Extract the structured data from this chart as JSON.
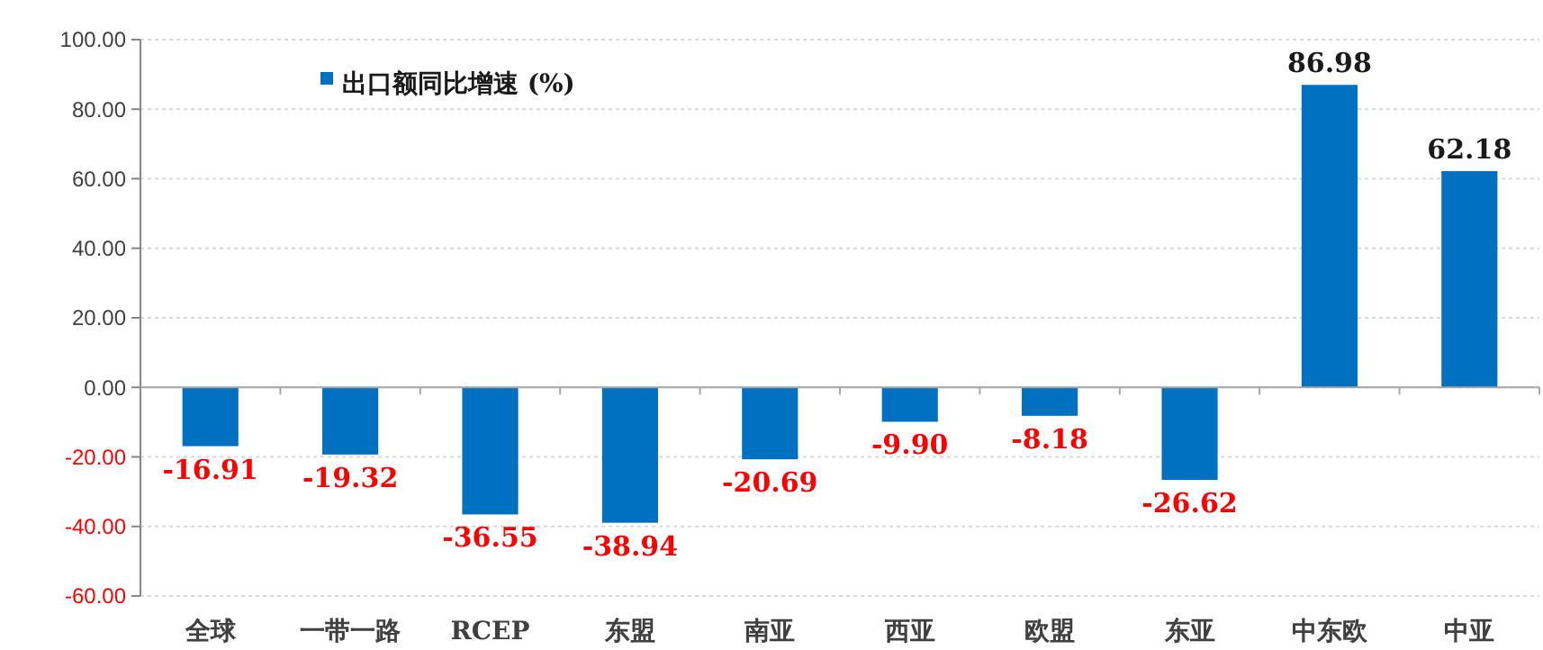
{
  "chart_data": {
    "type": "bar",
    "categories": [
      "全球",
      "一带一路",
      "RCEP",
      "东盟",
      "南亚",
      "西亚",
      "欧盟",
      "东亚",
      "中东欧",
      "中亚"
    ],
    "series": [
      {
        "name": "出口额同比增速 (%)",
        "color": "#0070c0",
        "values": [
          -16.91,
          -19.32,
          -36.55,
          -38.94,
          -20.69,
          -9.9,
          -8.18,
          -26.62,
          86.98,
          62.18
        ]
      }
    ],
    "value_labels": [
      "-16.91",
      "-19.32",
      "-36.55",
      "-38.94",
      "-20.69",
      "-9.90",
      "-8.18",
      "-26.62",
      "86.98",
      "62.18"
    ],
    "ylim": [
      -60,
      100
    ],
    "yticks": [
      {
        "value": -60,
        "label": "-60.00"
      },
      {
        "value": -40,
        "label": "-40.00"
      },
      {
        "value": -20,
        "label": "-20.00"
      },
      {
        "value": 0,
        "label": "0.00"
      },
      {
        "value": 20,
        "label": "20.00"
      },
      {
        "value": 40,
        "label": "40.00"
      },
      {
        "value": 60,
        "label": "60.00"
      },
      {
        "value": 80,
        "label": "80.00"
      },
      {
        "value": 100,
        "label": "100.00"
      }
    ],
    "grid": "y",
    "legend": "top left"
  }
}
